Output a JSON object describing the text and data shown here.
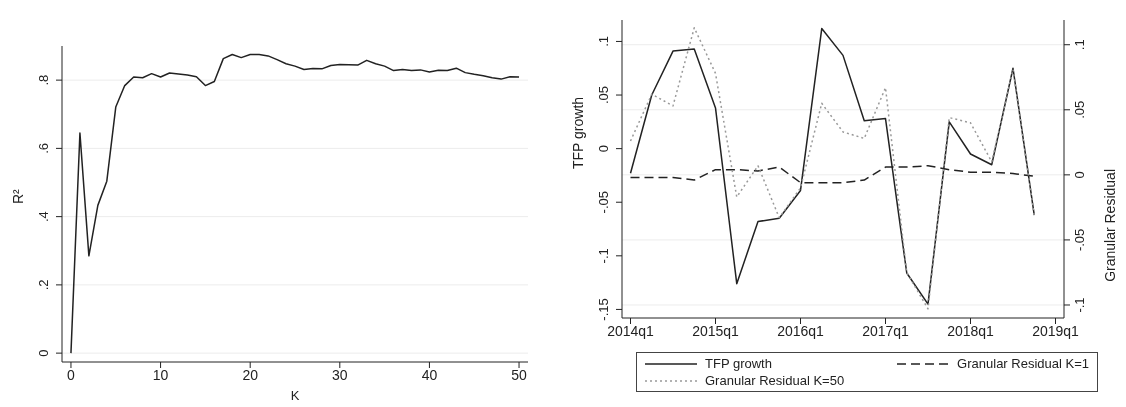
{
  "chart_data": [
    {
      "type": "line",
      "xlabel": "K",
      "ylabel": "R²",
      "x": [
        0,
        1,
        2,
        3,
        4,
        5,
        6,
        7,
        8,
        9,
        10,
        11,
        12,
        13,
        14,
        15,
        16,
        17,
        18,
        19,
        20,
        21,
        22,
        23,
        24,
        25,
        26,
        27,
        28,
        29,
        30,
        31,
        32,
        33,
        34,
        35,
        36,
        37,
        38,
        39,
        40,
        41,
        42,
        43,
        44,
        45,
        46,
        47,
        48,
        49,
        50
      ],
      "series": [
        {
          "color": "#222222",
          "line_style": "solid",
          "values": [
            0,
            0.645,
            0.285,
            0.433,
            0.504,
            0.721,
            0.784,
            0.809,
            0.807,
            0.819,
            0.809,
            0.821,
            0.818,
            0.815,
            0.81,
            0.784,
            0.796,
            0.863,
            0.875,
            0.866,
            0.875,
            0.875,
            0.871,
            0.86,
            0.848,
            0.841,
            0.831,
            0.834,
            0.833,
            0.843,
            0.846,
            0.845,
            0.844,
            0.858,
            0.848,
            0.841,
            0.828,
            0.831,
            0.828,
            0.83,
            0.824,
            0.829,
            0.828,
            0.835,
            0.822,
            0.817,
            0.813,
            0.807,
            0.803,
            0.81,
            0.809
          ]
        }
      ],
      "xlim": [
        -1,
        51
      ],
      "xticks": [
        0,
        10,
        20,
        30,
        40,
        50
      ],
      "ylim": [
        -0.026,
        0.9
      ],
      "yticks": [
        0,
        {
          "value": 0.2,
          "label": ".2"
        },
        {
          "value": 0.4,
          "label": ".4"
        },
        {
          "value": 0.6,
          "label": ".6"
        },
        {
          "value": 0.8,
          "label": ".8"
        }
      ],
      "grid": "y",
      "legend": false
    },
    {
      "type": "line",
      "ylabel": "TFP growth",
      "y2label": "Granular Residual",
      "categories": [
        "2014q1",
        null,
        null,
        null,
        "2015q1",
        null,
        null,
        null,
        "2016q1",
        null,
        null,
        null,
        "2017q1",
        null,
        null,
        null,
        "2018q1",
        null,
        null,
        null,
        "2019q1"
      ],
      "series": [
        {
          "name": "TFP growth",
          "color": "#222222",
          "line_style": "solid",
          "values": [
            -0.023,
            0.05,
            0.091,
            0.093,
            0.038,
            -0.126,
            -0.068,
            -0.065,
            -0.039,
            0.112,
            0.087,
            0.026,
            0.028,
            -0.116,
            -0.145,
            0.025,
            -0.005,
            -0.015,
            0.075,
            -0.062,
            null
          ]
        },
        {
          "name": "Granular Residual K=1",
          "color": "#222222",
          "line_style": "dashed",
          "axis": "y2",
          "values": [
            -0.002,
            -0.002,
            -0.002,
            -0.004,
            0.004,
            0.004,
            0.003,
            0.006,
            -0.006,
            -0.006,
            -0.006,
            -0.004,
            0.006,
            0.006,
            0.007,
            0.004,
            0.002,
            0.002,
            0.001,
            -0.001,
            null
          ]
        },
        {
          "name": "Granular Residual K=50",
          "color": "#999999",
          "line_style": "dotted",
          "axis": "y2",
          "values": [
            0.026,
            0.062,
            0.053,
            0.113,
            0.078,
            -0.017,
            0.007,
            -0.033,
            -0.01,
            0.055,
            0.033,
            0.028,
            0.067,
            -0.075,
            -0.103,
            0.044,
            0.04,
            0.01,
            0.081,
            -0.031,
            null
          ]
        }
      ],
      "ylim": [
        -0.158,
        0.12
      ],
      "yticks": [
        {
          "value": -0.15,
          "label": "-.15"
        },
        {
          "value": -0.1,
          "label": "-.1"
        },
        {
          "value": -0.05,
          "label": "-.05"
        },
        0,
        {
          "value": 0.05,
          "label": ".05"
        },
        {
          "value": 0.1,
          "label": ".1"
        }
      ],
      "y2lim": [
        -0.11,
        0.119
      ],
      "y2ticks": [
        {
          "value": -0.1,
          "label": "-.1"
        },
        {
          "value": -0.05,
          "label": "-.05"
        },
        0,
        {
          "value": 0.05,
          "label": ".05"
        },
        {
          "value": 0.1,
          "label": ".1"
        }
      ],
      "grid": "y2",
      "legend": "bottom"
    }
  ]
}
